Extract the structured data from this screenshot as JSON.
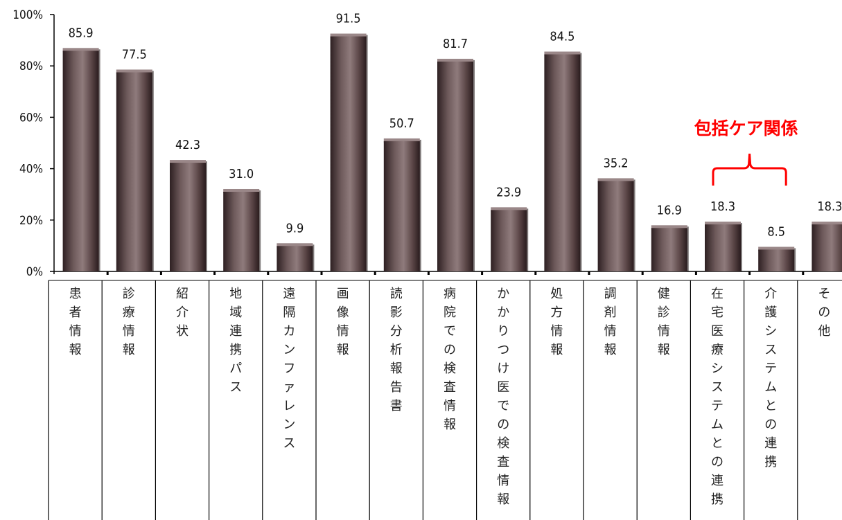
{
  "chart_data": {
    "type": "bar",
    "categories": [
      "患者情報",
      "診療情報",
      "紹介状",
      "地域連携パス",
      "遠隔カンファレンス",
      "画像情報",
      "読影分析報告書",
      "病院での検査情報",
      "かかりつけ医での検査情報",
      "処方情報",
      "調剤情報",
      "健診情報",
      "在宅医療システムとの連携",
      "介護システムとの連携",
      "その他"
    ],
    "values": [
      85.9,
      77.5,
      42.3,
      31.0,
      9.9,
      91.5,
      50.7,
      81.7,
      23.9,
      84.5,
      35.2,
      16.9,
      18.3,
      8.5,
      18.3
    ],
    "value_labels": [
      "85.9",
      "77.5",
      "42.3",
      "31.0",
      "9.9",
      "91.5",
      "50.7",
      "81.7",
      "23.9",
      "84.5",
      "35.2",
      "16.9",
      "18.3",
      "8.5",
      "18.3"
    ],
    "y_ticks": [
      "0%",
      "20%",
      "40%",
      "60%",
      "80%",
      "100%"
    ],
    "ylim": [
      0,
      100
    ],
    "grid": false,
    "bar_color": "#5a4546",
    "annotation": {
      "text": "包括ケア関係",
      "color": "#ff0000",
      "spans_categories": [
        12,
        13
      ]
    }
  }
}
